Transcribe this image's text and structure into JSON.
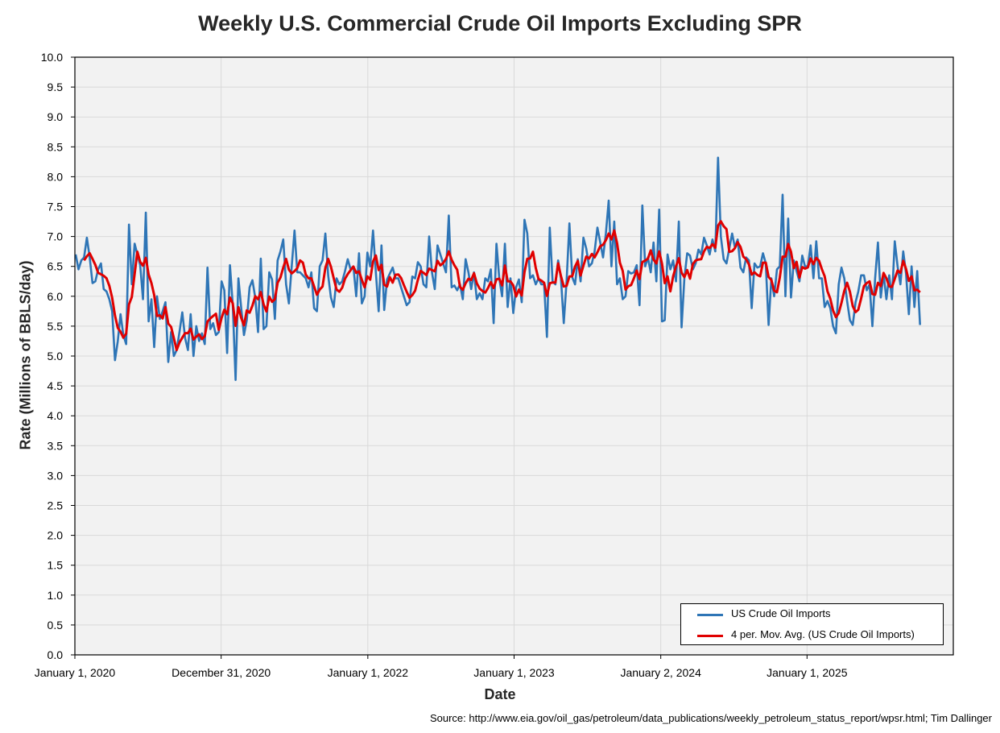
{
  "chart_data": {
    "type": "line",
    "title": "Weekly U.S. Commercial Crude Oil Imports Excluding SPR",
    "xlabel": "Date",
    "ylabel": "Rate (Millions of BBLS/day)",
    "source": "Source: http://www.eia.gov/oil_gas/petroleum/data_publications/weekly_petroleum_status_report/wpsr.html; Tim Dallinger",
    "ylim": [
      0,
      10
    ],
    "y_ticks": [
      "0.0",
      "0.5",
      "1.0",
      "1.5",
      "2.0",
      "2.5",
      "3.0",
      "3.5",
      "4.0",
      "4.5",
      "5.0",
      "5.5",
      "6.0",
      "6.5",
      "7.0",
      "7.5",
      "8.0",
      "8.5",
      "9.0",
      "9.5",
      "10.0"
    ],
    "x_start": "2020-01-01",
    "x_end": "2026-01-01",
    "x_ticks": [
      {
        "date": "2020-01-01",
        "label": "January 1, 2020"
      },
      {
        "date": "2020-12-31",
        "label": "December 31, 2020"
      },
      {
        "date": "2022-01-01",
        "label": "January 1, 2022"
      },
      {
        "date": "2023-01-01",
        "label": "January 1, 2023"
      },
      {
        "date": "2024-01-02",
        "label": "January 2, 2024"
      },
      {
        "date": "2025-01-01",
        "label": "January 1, 2025"
      }
    ],
    "grid": true,
    "legend_position": "bottom-right",
    "series_start": "2020-01-03",
    "series": [
      {
        "name": "US Crude Oil Imports",
        "color": "#2e75b6",
        "values": [
          6.7,
          6.45,
          6.6,
          6.65,
          6.98,
          6.65,
          6.22,
          6.25,
          6.45,
          6.55,
          6.12,
          6.08,
          5.95,
          5.75,
          4.93,
          5.25,
          5.7,
          5.35,
          5.2,
          7.2,
          6.2,
          6.88,
          6.7,
          6.52,
          5.95,
          7.4,
          5.58,
          5.95,
          5.15,
          6.0,
          5.62,
          5.75,
          5.9,
          4.9,
          5.4,
          5.0,
          5.1,
          5.4,
          5.73,
          5.3,
          5.1,
          5.7,
          5.0,
          5.5,
          5.25,
          5.38,
          5.2,
          6.48,
          5.45,
          5.55,
          5.35,
          5.4,
          6.25,
          6.1,
          5.05,
          6.52,
          5.85,
          4.6,
          6.3,
          5.8,
          5.35,
          5.6,
          6.15,
          6.27,
          5.98,
          5.4,
          6.63,
          5.45,
          5.5,
          6.4,
          6.28,
          5.62,
          6.6,
          6.75,
          6.95,
          6.2,
          5.88,
          6.5,
          7.1,
          6.4,
          6.4,
          6.35,
          6.3,
          6.15,
          6.4,
          5.8,
          5.75,
          6.5,
          6.6,
          7.05,
          6.35,
          5.98,
          5.82,
          6.3,
          6.2,
          6.25,
          6.42,
          6.62,
          6.45,
          6.5,
          6.0,
          6.72,
          5.88,
          6.0,
          6.73,
          6.5,
          7.1,
          6.4,
          5.75,
          6.85,
          5.77,
          6.28,
          6.38,
          6.48,
          6.3,
          6.3,
          6.15,
          6.0,
          5.85,
          5.9,
          6.33,
          6.3,
          6.57,
          6.5,
          6.2,
          6.15,
          7.0,
          6.4,
          6.12,
          6.85,
          6.7,
          6.55,
          6.4,
          7.35,
          6.15,
          6.18,
          6.1,
          6.2,
          5.95,
          6.62,
          6.4,
          6.12,
          6.4,
          5.95,
          6.05,
          5.95,
          6.3,
          6.25,
          6.45,
          5.55,
          6.88,
          6.3,
          6.0,
          6.88,
          5.82,
          6.3,
          5.72,
          6.15,
          6.28,
          5.9,
          7.28,
          7.05,
          6.3,
          6.35,
          6.2,
          6.3,
          6.2,
          6.2,
          5.32,
          7.15,
          6.25,
          6.2,
          6.6,
          6.3,
          5.55,
          6.25,
          7.22,
          6.32,
          6.2,
          6.62,
          6.25,
          6.98,
          6.8,
          6.5,
          6.55,
          6.75,
          7.15,
          6.9,
          6.65,
          7.05,
          7.6,
          6.5,
          7.25,
          6.2,
          6.3,
          5.95,
          6.0,
          6.42,
          6.38,
          6.4,
          6.52,
          5.85,
          7.52,
          6.5,
          6.65,
          6.4,
          6.9,
          6.25,
          7.45,
          5.58,
          5.6,
          6.7,
          6.45,
          6.6,
          6.25,
          7.25,
          5.48,
          6.3,
          6.72,
          6.68,
          6.45,
          6.55,
          6.78,
          6.7,
          6.98,
          6.85,
          6.7,
          6.95,
          6.75,
          8.32,
          7.0,
          6.62,
          6.55,
          6.8,
          7.05,
          6.82,
          6.95,
          6.48,
          6.4,
          6.65,
          6.6,
          5.8,
          6.55,
          6.48,
          6.5,
          6.72,
          6.55,
          5.52,
          6.3,
          6.0,
          6.45,
          6.5,
          7.7,
          6.0,
          7.3,
          5.98,
          6.6,
          6.42,
          6.25,
          6.68,
          6.5,
          6.5,
          6.85,
          6.3,
          6.92,
          6.3,
          6.3,
          5.82,
          5.92,
          5.8,
          5.5,
          5.38,
          6.2,
          6.48,
          6.3,
          5.92,
          5.6,
          5.52,
          5.9,
          6.08,
          6.35,
          6.35,
          6.1,
          6.2,
          5.5,
          6.3,
          6.9,
          5.98,
          6.38,
          5.95,
          6.35,
          5.95,
          6.92,
          6.5,
          6.2,
          6.75,
          6.38,
          5.7,
          6.5,
          5.82,
          6.42,
          5.52
        ]
      },
      {
        "name": "4 per. Mov. Avg. (US Crude Oil Imports)",
        "color": "#e00000",
        "window": 4
      }
    ]
  }
}
